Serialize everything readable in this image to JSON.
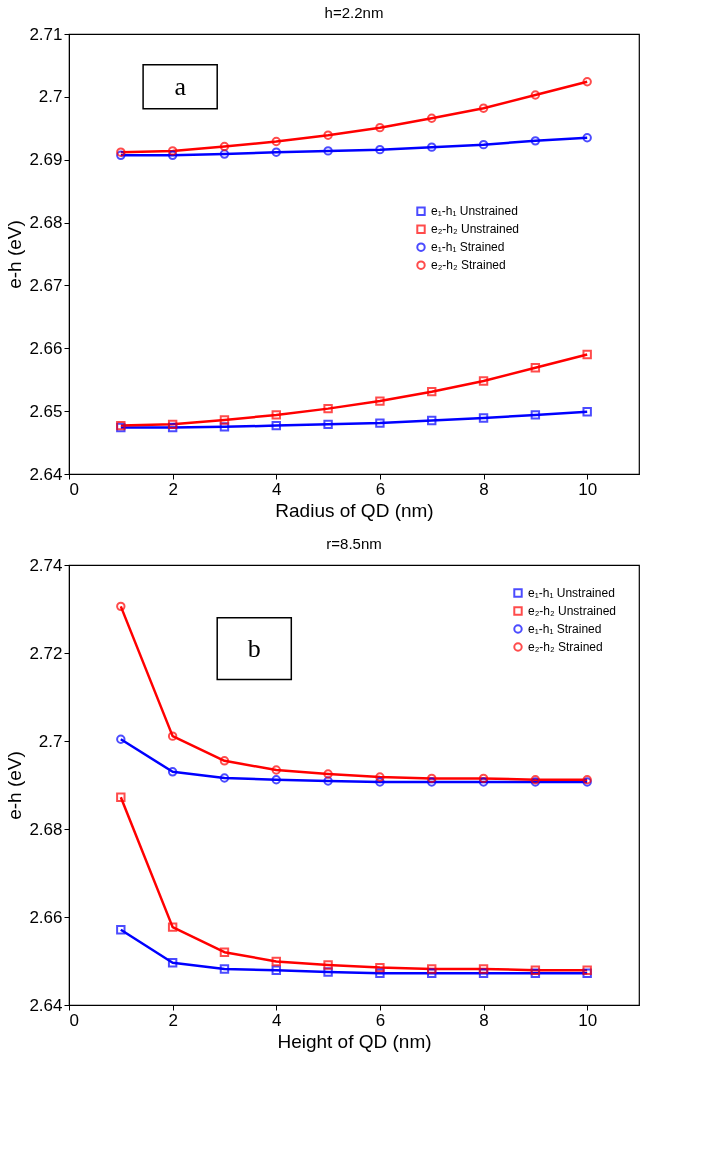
{
  "chart_data": [
    {
      "type": "line",
      "title": "h=2.2nm",
      "xlabel": "Radius of QD (nm)",
      "ylabel": "e-h (eV)",
      "annotations": [
        "a"
      ],
      "x": [
        1,
        2,
        3,
        4,
        5,
        6,
        7,
        8,
        9,
        10
      ],
      "xlim": [
        0,
        11
      ],
      "xticks": [
        0,
        2,
        4,
        6,
        8,
        10
      ],
      "ylim": [
        2.64,
        2.71
      ],
      "yticks": [
        2.64,
        2.65,
        2.66,
        2.67,
        2.68,
        2.69,
        2.7,
        2.71
      ],
      "grid": false,
      "legend": "right",
      "series": [
        {
          "name": "e₁-h₁ Unstrained",
          "color": "#0000ff",
          "marker": "square",
          "values": [
            2.6474,
            2.6474,
            2.6475,
            2.6477,
            2.6479,
            2.6481,
            2.6485,
            2.6489,
            2.6494,
            2.6499
          ]
        },
        {
          "name": "e₂-h₂ Unstrained",
          "color": "#ff0000",
          "marker": "square",
          "values": [
            2.6477,
            2.6479,
            2.6486,
            2.6494,
            2.6504,
            2.6516,
            2.6531,
            2.6548,
            2.6569,
            2.659
          ]
        },
        {
          "name": "e₁-h₁ Strained",
          "color": "#0000ff",
          "marker": "circle",
          "values": [
            2.6907,
            2.6907,
            2.6909,
            2.6912,
            2.6914,
            2.6916,
            2.692,
            2.6924,
            2.693,
            2.6935
          ]
        },
        {
          "name": "e₂-h₂ Strained",
          "color": "#ff0000",
          "marker": "circle",
          "values": [
            2.6912,
            2.6914,
            2.6921,
            2.6929,
            2.6939,
            2.6951,
            2.6966,
            2.6982,
            2.7003,
            2.7024
          ]
        }
      ]
    },
    {
      "type": "line",
      "title": "r=8.5nm",
      "xlabel": "Height of QD (nm)",
      "ylabel": "e-h (eV)",
      "annotations": [
        "b"
      ],
      "x": [
        1,
        2,
        3,
        4,
        5,
        6,
        7,
        8,
        9,
        10
      ],
      "xlim": [
        0,
        11
      ],
      "xticks": [
        0,
        2,
        4,
        6,
        8,
        10
      ],
      "ylim": [
        2.64,
        2.74
      ],
      "yticks": [
        2.64,
        2.66,
        2.68,
        2.7,
        2.72,
        2.74
      ],
      "grid": false,
      "legend": "top right",
      "series": [
        {
          "name": "e₁-h₁ Unstrained",
          "color": "#0000ff",
          "marker": "square",
          "values": [
            2.6571,
            2.6496,
            2.6482,
            2.6479,
            2.6475,
            2.6472,
            2.6472,
            2.6472,
            2.6472,
            2.6472
          ]
        },
        {
          "name": "e₂-h₂ Unstrained",
          "color": "#ff0000",
          "marker": "square",
          "values": [
            2.6872,
            2.6577,
            2.652,
            2.6499,
            2.6491,
            2.6485,
            2.6482,
            2.6482,
            2.6479,
            2.6479
          ]
        },
        {
          "name": "e₁-h₁ Strained",
          "color": "#0000ff",
          "marker": "circle",
          "values": [
            2.7004,
            2.693,
            2.6916,
            2.6912,
            2.6909,
            2.6907,
            2.6907,
            2.6907,
            2.6907,
            2.6907
          ]
        },
        {
          "name": "e₂-h₂ Strained",
          "color": "#ff0000",
          "marker": "circle",
          "values": [
            2.7306,
            2.7011,
            2.6955,
            2.6934,
            2.6925,
            2.6918,
            2.6915,
            2.6915,
            2.6912,
            2.6912
          ]
        }
      ]
    }
  ]
}
